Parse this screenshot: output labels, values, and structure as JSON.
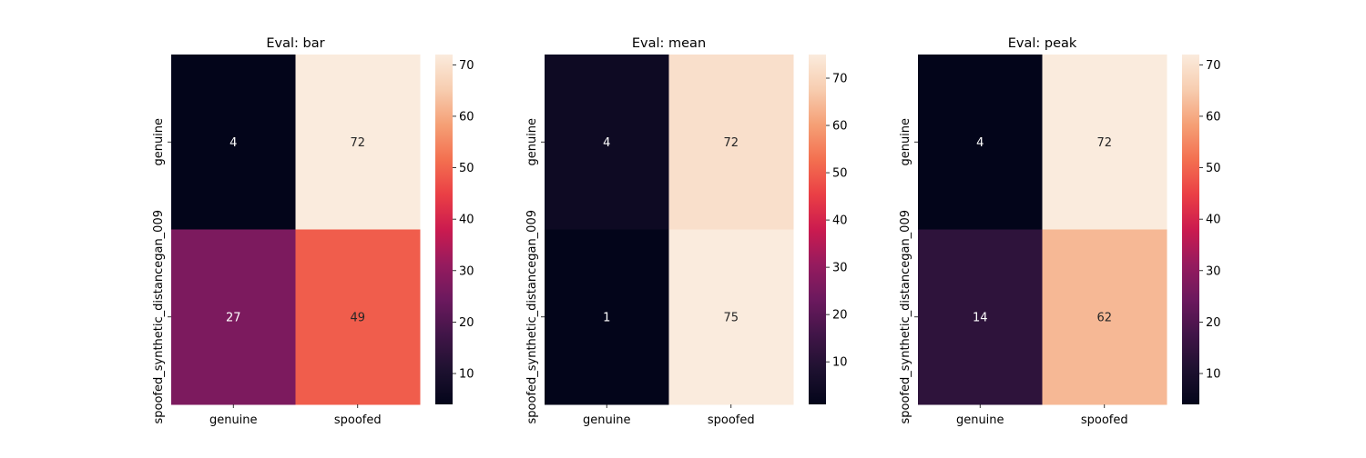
{
  "chart_data": [
    {
      "type": "heatmap",
      "title": "Eval: bar",
      "row_labels": [
        "genuine",
        "spoofed_synthetic_distancegan_009"
      ],
      "col_labels": [
        "genuine",
        "spoofed"
      ],
      "values": [
        [
          4,
          72
        ],
        [
          27,
          49
        ]
      ],
      "vmin": 4,
      "vmax": 72,
      "colorbar_ticks": [
        10,
        20,
        30,
        40,
        50,
        60,
        70
      ],
      "colormap": "rocket"
    },
    {
      "type": "heatmap",
      "title": "Eval: mean",
      "row_labels": [
        "genuine",
        "spoofed_synthetic_distancegan_009"
      ],
      "col_labels": [
        "genuine",
        "spoofed"
      ],
      "values": [
        [
          4,
          72
        ],
        [
          1,
          75
        ]
      ],
      "vmin": 1,
      "vmax": 75,
      "colorbar_ticks": [
        10,
        20,
        30,
        40,
        50,
        60,
        70
      ],
      "colormap": "rocket"
    },
    {
      "type": "heatmap",
      "title": "Eval: peak",
      "row_labels": [
        "genuine",
        "spoofed_synthetic_distancegan_009"
      ],
      "col_labels": [
        "genuine",
        "spoofed"
      ],
      "values": [
        [
          4,
          72
        ],
        [
          14,
          62
        ]
      ],
      "vmin": 4,
      "vmax": 72,
      "colorbar_ticks": [
        10,
        20,
        30,
        40,
        50,
        60,
        70
      ],
      "colormap": "rocket"
    }
  ]
}
